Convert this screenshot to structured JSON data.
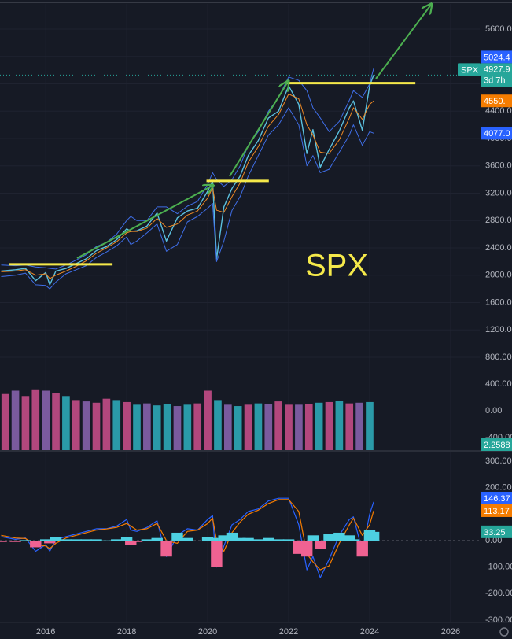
{
  "chart_data": [
    {
      "type": "line",
      "symbol": "SPX",
      "annotation": "SPX",
      "grid": true,
      "xlim": [
        2014.87,
        2026.72
      ],
      "ylim": [
        443,
        6026
      ],
      "yticks": [
        {
          "value": 800,
          "label": "800.00"
        },
        {
          "value": 1200,
          "label": "1200.00"
        },
        {
          "value": 1600,
          "label": "1600.00"
        },
        {
          "value": 2000,
          "label": "2000.00"
        },
        {
          "value": 2400,
          "label": "2400.00"
        },
        {
          "value": 2800,
          "label": "2800.00"
        },
        {
          "value": 3200,
          "label": "3200.00"
        },
        {
          "value": 3600,
          "label": "3600.00"
        },
        {
          "value": 4000,
          "label": "4000.00"
        },
        {
          "value": 4400,
          "label": "4400.00"
        },
        {
          "value": 4800,
          "label": "4800.00"
        },
        {
          "value": 5200,
          "label": "5200.00"
        },
        {
          "value": 5600,
          "label": "5600.00"
        }
      ],
      "x": [
        2014.9,
        2015.25,
        2015.5,
        2015.75,
        2016.0,
        2016.1,
        2016.25,
        2016.5,
        2016.75,
        2017.0,
        2017.25,
        2017.5,
        2017.75,
        2018.0,
        2018.1,
        2018.25,
        2018.5,
        2018.75,
        2018.98,
        2019.25,
        2019.5,
        2019.75,
        2020.0,
        2020.12,
        2020.22,
        2020.4,
        2020.6,
        2020.8,
        2021.0,
        2021.25,
        2021.5,
        2021.75,
        2022.0,
        2022.25,
        2022.45,
        2022.6,
        2022.78,
        2023.0,
        2023.25,
        2023.5,
        2023.6,
        2023.82,
        2024.0,
        2024.1
      ],
      "series": [
        {
          "color": "#5bc0de",
          "values": [
            2060,
            2080,
            2100,
            1920,
            2040,
            1860,
            2060,
            2100,
            2170,
            2240,
            2360,
            2420,
            2520,
            2680,
            2640,
            2650,
            2720,
            2910,
            2500,
            2840,
            2940,
            2980,
            3230,
            3380,
            2240,
            3000,
            3270,
            3450,
            3750,
            3970,
            4300,
            4400,
            4770,
            4500,
            3780,
            4130,
            3580,
            3840,
            4110,
            4450,
            4550,
            4120,
            4770,
            4927.9
          ]
        },
        {
          "color": "#3f6ee8",
          "values": [
            2150,
            2140,
            2150,
            2120,
            2110,
            2100,
            2090,
            2150,
            2220,
            2300,
            2420,
            2480,
            2600,
            2800,
            2860,
            2800,
            2800,
            3000,
            3000,
            2900,
            3010,
            3080,
            3330,
            3500,
            3400,
            3300,
            3400,
            3600,
            3900,
            4100,
            4400,
            4600,
            4900,
            4850,
            4700,
            4450,
            4300,
            4100,
            4250,
            4560,
            4700,
            4600,
            4800,
            5024.4
          ]
        },
        {
          "color": "#3f6ee8",
          "values": [
            1980,
            2000,
            2030,
            1860,
            1850,
            1800,
            1900,
            2020,
            2080,
            2140,
            2260,
            2340,
            2430,
            2560,
            2450,
            2500,
            2620,
            2750,
            2350,
            2450,
            2780,
            2860,
            2980,
            3050,
            2200,
            2500,
            2950,
            3150,
            3450,
            3750,
            4050,
            4200,
            4450,
            4200,
            3600,
            3750,
            3500,
            3550,
            3800,
            4050,
            4200,
            3900,
            4100,
            4077
          ]
        },
        {
          "color": "#f08a24",
          "values": [
            2050,
            2060,
            2080,
            2000,
            2020,
            1950,
            2000,
            2060,
            2130,
            2210,
            2320,
            2400,
            2490,
            2620,
            2640,
            2640,
            2690,
            2830,
            2700,
            2750,
            2880,
            2940,
            3130,
            3280,
            2950,
            2920,
            3150,
            3350,
            3650,
            3880,
            4180,
            4350,
            4650,
            4580,
            4200,
            4050,
            3800,
            3780,
            3980,
            4300,
            4450,
            4280,
            4500,
            4550
          ]
        }
      ],
      "level_color": "#f5e94a",
      "levels": [
        {
          "value": 2160,
          "from": 2015.1,
          "to": 2017.65
        },
        {
          "value": 3380,
          "from": 2019.97,
          "to": 2021.51
        },
        {
          "value": 4810,
          "from": 2021.94,
          "to": 2025.13
        }
      ],
      "last": {
        "value": 4927.9,
        "countdown": "3d 7h",
        "color": "#26a69a"
      },
      "badges": [
        {
          "value": 5024.4,
          "color": "#2962ff"
        },
        {
          "value": 4550,
          "label": "4550.",
          "color": "#f57c00"
        },
        {
          "value": 4077,
          "label": "4077.0",
          "color": "#2962ff"
        }
      ]
    },
    {
      "type": "bar",
      "grid": false,
      "xlim": [
        2014.87,
        2026.72
      ],
      "ylim": [
        -588,
        435
      ],
      "yticks": [
        {
          "value": 400,
          "label": "400.00"
        },
        {
          "value": 0,
          "label": "0.00"
        },
        {
          "value": -400,
          "label": "-400.00"
        }
      ],
      "x": [
        2015.0,
        2015.25,
        2015.5,
        2015.75,
        2016.0,
        2016.25,
        2016.5,
        2016.75,
        2017.0,
        2017.25,
        2017.5,
        2017.75,
        2018.0,
        2018.25,
        2018.5,
        2018.75,
        2019.0,
        2019.25,
        2019.5,
        2019.75,
        2020.0,
        2020.25,
        2020.5,
        2020.75,
        2021.0,
        2021.25,
        2021.5,
        2021.75,
        2022.0,
        2022.25,
        2022.5,
        2022.75,
        2023.0,
        2023.25,
        2023.5,
        2023.75,
        2024.0
      ],
      "values": [
        250,
        300,
        220,
        320,
        300,
        260,
        220,
        160,
        140,
        120,
        180,
        160,
        130,
        90,
        110,
        80,
        100,
        70,
        90,
        110,
        300,
        160,
        90,
        70,
        90,
        110,
        100,
        140,
        90,
        90,
        100,
        120,
        130,
        150,
        110,
        120,
        130
      ],
      "colors": [
        "#b2477d",
        "#7a5a9e",
        "#b2477d",
        "#b2477d",
        "#7a5a9e",
        "#b2477d",
        "#2a9aa8",
        "#b2477d",
        "#7a5a9e",
        "#b2477d",
        "#b2477d",
        "#2a9aa8",
        "#b2477d",
        "#2a9aa8",
        "#7a5a9e",
        "#2a9aa8",
        "#2a9aa8",
        "#7a5a9e",
        "#2a9aa8",
        "#b2477d",
        "#b2477d",
        "#2a9aa8",
        "#7a5a9e",
        "#2a9aa8",
        "#b2477d",
        "#2a9aa8",
        "#7a5a9e",
        "#b2477d",
        "#b2477d",
        "#7a5a9e",
        "#b2477d",
        "#2a9aa8",
        "#b2477d",
        "#2a9aa8",
        "#b2477d",
        "#7a5a9e",
        "#2a9aa8"
      ],
      "badge": 2.2588,
      "badge_color": "#26a69a"
    },
    {
      "type": "macd",
      "grid": false,
      "xlim": [
        2014.87,
        2026.72
      ],
      "ylim": [
        -306,
        333
      ],
      "yticks": [
        {
          "value": 300,
          "label": "300.00"
        },
        {
          "value": 200,
          "label": "200.00"
        },
        {
          "value": 100,
          "label": "100.00"
        },
        {
          "value": 0,
          "label": "0.00"
        },
        {
          "value": -100,
          "label": "-100.00"
        },
        {
          "value": -200,
          "label": "-200.00"
        },
        {
          "value": -300,
          "label": "-300.00"
        }
      ],
      "xticks": [
        2016,
        2018,
        2020,
        2022,
        2024,
        2026
      ],
      "x": [
        2014.9,
        2015.25,
        2015.5,
        2015.75,
        2016.0,
        2016.1,
        2016.25,
        2016.5,
        2016.75,
        2017.0,
        2017.25,
        2017.5,
        2017.75,
        2018.0,
        2018.1,
        2018.25,
        2018.5,
        2018.75,
        2018.98,
        2019.25,
        2019.5,
        2019.75,
        2020.0,
        2020.12,
        2020.22,
        2020.4,
        2020.6,
        2020.8,
        2021.0,
        2021.25,
        2021.5,
        2021.75,
        2022.0,
        2022.25,
        2022.45,
        2022.6,
        2022.78,
        2023.0,
        2023.25,
        2023.5,
        2023.6,
        2023.82,
        2024.0,
        2024.1
      ],
      "series": [
        {
          "color": "#2962ff",
          "values": [
            15,
            5,
            10,
            -40,
            -15,
            -40,
            5,
            15,
            25,
            35,
            45,
            45,
            55,
            80,
            40,
            35,
            50,
            75,
            -60,
            20,
            45,
            40,
            80,
            95,
            -100,
            -20,
            60,
            80,
            110,
            120,
            150,
            160,
            160,
            60,
            -110,
            -60,
            -140,
            -70,
            20,
            80,
            90,
            -40,
            100,
            146.37
          ]
        },
        {
          "color": "#f57c00",
          "values": [
            20,
            10,
            8,
            -15,
            -20,
            -30,
            -10,
            10,
            20,
            30,
            40,
            44,
            50,
            65,
            55,
            40,
            45,
            65,
            0,
            -10,
            35,
            40,
            65,
            85,
            0,
            -40,
            30,
            70,
            100,
            115,
            140,
            155,
            155,
            110,
            -50,
            -80,
            -110,
            -95,
            -10,
            60,
            85,
            20,
            60,
            113.17
          ]
        }
      ],
      "histogram": {
        "color": "#4dd0e1",
        "negative_color": "#f06292",
        "values": [
          -5,
          -5,
          2,
          -25,
          5,
          -10,
          15,
          5,
          5,
          5,
          5,
          1,
          5,
          15,
          -15,
          -5,
          5,
          10,
          -60,
          30,
          10,
          0,
          15,
          10,
          -100,
          20,
          30,
          10,
          10,
          5,
          10,
          5,
          5,
          -50,
          -60,
          20,
          -30,
          25,
          30,
          20,
          5,
          -60,
          40,
          33.25
        ]
      },
      "badges": [
        {
          "value": 146.37,
          "color": "#2962ff"
        },
        {
          "value": 113.17,
          "color": "#f57c00"
        },
        {
          "value": 33.25,
          "color": "#26a69a"
        }
      ]
    }
  ]
}
